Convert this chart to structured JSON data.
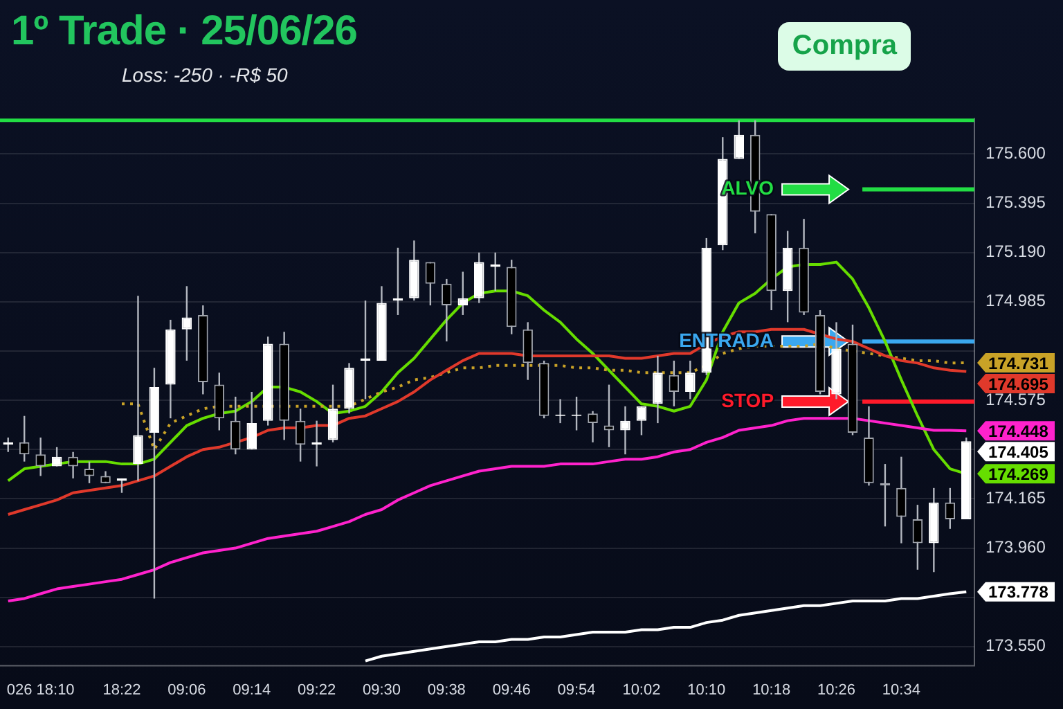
{
  "chart_data": {
    "type": "candlestick",
    "title": "1º Trade · 25/06/26",
    "subtitle": "Loss: -250 · -R$ 50",
    "annotations": [
      "Compra"
    ],
    "categories": [
      null,
      null,
      "026 18:10",
      null,
      null,
      null,
      null,
      "18:22",
      null,
      null,
      null,
      "09:06",
      null,
      null,
      null,
      "09:14",
      null,
      null,
      null,
      "09:22",
      null,
      null,
      null,
      "09:30",
      null,
      null,
      null,
      "09:38",
      null,
      null,
      null,
      "09:46",
      null,
      null,
      null,
      "09:54",
      null,
      null,
      null,
      "10:02",
      null,
      null,
      null,
      "10:10",
      null,
      null,
      null,
      "10:18",
      null,
      null,
      null,
      "10:26",
      null,
      null,
      null,
      "10:34",
      null,
      null,
      null,
      null
    ],
    "ohlc": [
      [
        174.39,
        174.42,
        174.36,
        174.4
      ],
      [
        174.4,
        174.51,
        174.32,
        174.35
      ],
      [
        174.35,
        174.42,
        174.26,
        174.3
      ],
      [
        174.3,
        174.38,
        174.3,
        174.34
      ],
      [
        174.34,
        174.36,
        174.25,
        174.3
      ],
      [
        174.29,
        174.32,
        174.23,
        174.26
      ],
      [
        174.26,
        174.28,
        174.23,
        174.23
      ],
      [
        174.24,
        174.25,
        174.19,
        174.25
      ],
      [
        174.31,
        175.01,
        174.24,
        174.43
      ],
      [
        174.44,
        174.71,
        173.75,
        174.63
      ],
      [
        174.64,
        174.91,
        174.5,
        174.87
      ],
      [
        174.87,
        175.05,
        174.74,
        174.92
      ],
      [
        174.93,
        174.97,
        174.6,
        174.65
      ],
      [
        174.64,
        174.69,
        174.45,
        174.5
      ],
      [
        174.49,
        174.59,
        174.35,
        174.37
      ],
      [
        174.37,
        174.61,
        174.37,
        174.48
      ],
      [
        174.49,
        174.84,
        174.47,
        174.81
      ],
      [
        174.81,
        174.86,
        174.41,
        174.49
      ],
      [
        174.49,
        174.54,
        174.32,
        174.39
      ],
      [
        174.39,
        174.49,
        174.3,
        174.4
      ],
      [
        174.41,
        174.64,
        174.4,
        174.54
      ],
      [
        174.54,
        174.73,
        174.52,
        174.71
      ],
      [
        174.74,
        174.99,
        174.58,
        174.75
      ],
      [
        174.74,
        175.05,
        174.74,
        174.98
      ],
      [
        174.99,
        175.21,
        174.93,
        175
      ],
      [
        175,
        175.24,
        174.99,
        175.16
      ],
      [
        175.15,
        175.15,
        174.97,
        175.06
      ],
      [
        175.06,
        175.08,
        174.82,
        174.97
      ],
      [
        174.97,
        175.11,
        174.93,
        175
      ],
      [
        175,
        175.19,
        174.98,
        175.15
      ],
      [
        175.13,
        175.19,
        175.03,
        175.14
      ],
      [
        175.13,
        175.16,
        174.85,
        174.88
      ],
      [
        174.87,
        174.9,
        174.66,
        174.73
      ],
      [
        174.73,
        174.74,
        174.5,
        174.51
      ],
      [
        174.51,
        174.58,
        174.48,
        174.51
      ],
      [
        174.51,
        174.59,
        174.45,
        174.51
      ],
      [
        174.52,
        174.53,
        174.4,
        174.48
      ],
      [
        174.47,
        174.64,
        174.38,
        174.45
      ],
      [
        174.45,
        174.55,
        174.35,
        174.49
      ],
      [
        174.49,
        174.55,
        174.43,
        174.55
      ],
      [
        174.56,
        174.76,
        174.48,
        174.69
      ],
      [
        174.68,
        174.74,
        174.55,
        174.61
      ],
      [
        174.61,
        174.74,
        174.58,
        174.69
      ],
      [
        174.69,
        175.25,
        174.68,
        175.21
      ],
      [
        175.22,
        175.67,
        175.2,
        175.58
      ],
      [
        175.58,
        175.74,
        175.58,
        175.68
      ],
      [
        175.68,
        175.74,
        175.27,
        175.36
      ],
      [
        175.35,
        175.35,
        174.95,
        175.03
      ],
      [
        175.03,
        175.28,
        174.9,
        175.21
      ],
      [
        175.21,
        175.33,
        174.93,
        174.94
      ],
      [
        174.93,
        174.95,
        174.6,
        174.61
      ],
      [
        174.6,
        174.9,
        174.58,
        174.79
      ],
      [
        174.81,
        174.89,
        174.43,
        174.44
      ],
      [
        174.42,
        174.55,
        174.22,
        174.23
      ],
      [
        174.23,
        174.31,
        174.05,
        174.22
      ],
      [
        174.21,
        174.34,
        173.98,
        174.09
      ],
      [
        174.08,
        174.14,
        173.87,
        173.98
      ],
      [
        173.98,
        174.21,
        173.86,
        174.15
      ],
      [
        174.15,
        174.21,
        174.04,
        174.08
      ],
      [
        174.08,
        174.42,
        174.08,
        174.405
      ]
    ],
    "series": [
      {
        "type": "line",
        "color": "#ffffff",
        "value_labels": [
          null,
          null,
          null,
          null,
          null,
          null,
          null,
          null,
          null,
          null,
          null,
          null,
          null,
          null,
          null,
          null,
          null,
          null,
          null,
          null,
          null,
          null,
          null,
          null,
          null,
          null,
          null,
          null,
          null,
          null,
          null,
          null,
          null,
          null,
          null,
          null,
          null,
          null,
          null,
          null,
          null,
          null,
          null,
          null,
          null,
          null,
          null,
          null,
          null,
          null,
          null,
          null,
          null,
          null,
          null,
          null,
          null,
          null,
          null,
          "173.778"
        ],
        "values": [
          null,
          null,
          null,
          null,
          null,
          null,
          null,
          null,
          null,
          null,
          null,
          null,
          null,
          null,
          null,
          null,
          null,
          null,
          null,
          null,
          null,
          null,
          173.49,
          173.51,
          173.52,
          173.53,
          173.54,
          173.55,
          173.56,
          173.57,
          173.57,
          173.58,
          173.58,
          173.59,
          173.59,
          173.6,
          173.61,
          173.61,
          173.61,
          173.62,
          173.62,
          173.63,
          173.63,
          173.65,
          173.66,
          173.68,
          173.69,
          173.7,
          173.71,
          173.72,
          173.72,
          173.73,
          173.74,
          173.74,
          173.74,
          173.75,
          173.75,
          173.76,
          173.77,
          173.778
        ]
      },
      {
        "type": "line",
        "color": "#ff22cc",
        "value_labels": [
          null,
          null,
          null,
          null,
          null,
          null,
          null,
          null,
          null,
          null,
          null,
          null,
          null,
          null,
          null,
          null,
          null,
          null,
          null,
          null,
          null,
          null,
          null,
          null,
          null,
          null,
          null,
          null,
          null,
          null,
          null,
          null,
          null,
          null,
          null,
          null,
          null,
          null,
          null,
          null,
          null,
          null,
          null,
          null,
          null,
          null,
          null,
          null,
          null,
          null,
          null,
          null,
          null,
          null,
          null,
          null,
          null,
          null,
          null,
          "174.448"
        ],
        "values": [
          173.74,
          173.75,
          173.77,
          173.79,
          173.8,
          173.81,
          173.82,
          173.83,
          173.85,
          173.87,
          173.9,
          173.92,
          173.94,
          173.95,
          173.96,
          173.98,
          174,
          174.01,
          174.02,
          174.03,
          174.05,
          174.07,
          174.1,
          174.12,
          174.16,
          174.19,
          174.22,
          174.24,
          174.26,
          174.28,
          174.29,
          174.3,
          174.3,
          174.3,
          174.31,
          174.31,
          174.31,
          174.32,
          174.33,
          174.33,
          174.34,
          174.36,
          174.37,
          174.4,
          174.42,
          174.45,
          174.46,
          174.47,
          174.49,
          174.5,
          174.5,
          174.5,
          174.5,
          174.49,
          174.48,
          174.47,
          174.46,
          174.45,
          174.45,
          174.448
        ]
      },
      {
        "type": "line",
        "color": "#e0392b",
        "value_labels": [
          null,
          null,
          null,
          null,
          null,
          null,
          null,
          null,
          null,
          null,
          null,
          null,
          null,
          null,
          null,
          null,
          null,
          null,
          null,
          null,
          null,
          null,
          null,
          null,
          null,
          null,
          null,
          null,
          null,
          null,
          null,
          null,
          null,
          null,
          null,
          null,
          null,
          null,
          null,
          null,
          null,
          null,
          null,
          null,
          null,
          null,
          null,
          null,
          null,
          null,
          null,
          null,
          null,
          null,
          null,
          null,
          null,
          null,
          null,
          "174.695"
        ],
        "values": [
          174.1,
          174.12,
          174.14,
          174.16,
          174.19,
          174.2,
          174.21,
          174.22,
          174.24,
          174.26,
          174.3,
          174.34,
          174.37,
          174.38,
          174.4,
          174.42,
          174.45,
          174.46,
          174.46,
          174.47,
          174.47,
          174.5,
          174.51,
          174.54,
          174.57,
          174.61,
          174.66,
          174.7,
          174.74,
          174.77,
          174.77,
          174.77,
          174.76,
          174.76,
          174.76,
          174.76,
          174.76,
          174.76,
          174.75,
          174.75,
          174.76,
          174.77,
          174.77,
          174.81,
          174.84,
          174.86,
          174.86,
          174.87,
          174.87,
          174.87,
          174.85,
          174.83,
          174.82,
          174.79,
          174.76,
          174.74,
          174.73,
          174.71,
          174.7,
          174.695
        ]
      },
      {
        "type": "line",
        "color": "#c9a227",
        "line_style": "dotted",
        "value_labels": [
          null,
          null,
          null,
          null,
          null,
          null,
          null,
          null,
          null,
          null,
          null,
          null,
          null,
          null,
          null,
          null,
          null,
          null,
          null,
          null,
          null,
          null,
          null,
          null,
          null,
          null,
          null,
          null,
          null,
          null,
          null,
          null,
          null,
          null,
          null,
          null,
          null,
          null,
          null,
          null,
          null,
          null,
          null,
          null,
          null,
          null,
          null,
          null,
          null,
          null,
          null,
          null,
          null,
          null,
          null,
          null,
          null,
          null,
          null,
          "174.731"
        ],
        "values": [
          null,
          null,
          null,
          null,
          null,
          null,
          null,
          174.56,
          174.56,
          174.37,
          174.48,
          174.51,
          174.54,
          174.55,
          174.55,
          174.55,
          174.55,
          174.55,
          174.55,
          174.55,
          174.55,
          174.55,
          174.58,
          174.61,
          174.63,
          174.66,
          174.67,
          174.69,
          174.71,
          174.71,
          174.72,
          174.72,
          174.72,
          174.72,
          174.72,
          174.71,
          174.71,
          174.7,
          174.7,
          174.69,
          174.69,
          174.69,
          174.69,
          174.72,
          174.77,
          174.79,
          174.8,
          174.8,
          174.8,
          174.8,
          174.81,
          174.79,
          174.78,
          174.77,
          174.76,
          174.75,
          174.74,
          174.74,
          174.73,
          174.731
        ]
      },
      {
        "type": "line",
        "color": "#66dd00",
        "value_labels": [
          null,
          null,
          null,
          null,
          null,
          null,
          null,
          null,
          null,
          null,
          null,
          null,
          null,
          null,
          null,
          null,
          null,
          null,
          null,
          null,
          null,
          null,
          null,
          null,
          null,
          null,
          null,
          null,
          null,
          null,
          null,
          null,
          null,
          null,
          null,
          null,
          null,
          null,
          null,
          null,
          null,
          null,
          null,
          null,
          null,
          null,
          null,
          null,
          null,
          null,
          null,
          null,
          null,
          null,
          null,
          null,
          null,
          null,
          null,
          "174.269"
        ],
        "values": [
          174.24,
          174.29,
          174.3,
          174.31,
          174.32,
          174.32,
          174.32,
          174.31,
          174.31,
          174.33,
          174.4,
          174.47,
          174.5,
          174.52,
          174.53,
          174.57,
          174.63,
          174.63,
          174.61,
          174.57,
          174.52,
          174.53,
          174.55,
          174.61,
          174.69,
          174.75,
          174.83,
          174.91,
          174.98,
          175.02,
          175.03,
          175.03,
          175.01,
          174.95,
          174.9,
          174.83,
          174.77,
          174.7,
          174.63,
          174.56,
          174.55,
          174.53,
          174.55,
          174.66,
          174.86,
          174.98,
          175.02,
          175.08,
          175.13,
          175.14,
          175.14,
          175.15,
          175.08,
          174.96,
          174.82,
          174.66,
          174.51,
          174.37,
          174.29,
          174.269
        ]
      }
    ],
    "ref_lines": [
      {
        "axis": "y",
        "value": 175.74,
        "color": "#22dd44"
      },
      {
        "axis": "y",
        "value": 175.453,
        "label": "ALVO",
        "color": "#22dd44"
      },
      {
        "axis": "y",
        "value": 174.82,
        "label": "ENTRADA",
        "color": "#3aa8f0"
      },
      {
        "axis": "y",
        "value": 174.57,
        "label": "STOP",
        "color": "#ff1a2a"
      }
    ],
    "value_labels": [
      null,
      null,
      null,
      null,
      null,
      null,
      null,
      null,
      null,
      null,
      null,
      null,
      null,
      null,
      null,
      null,
      null,
      null,
      null,
      null,
      null,
      null,
      null,
      null,
      null,
      null,
      null,
      null,
      null,
      null,
      null,
      null,
      null,
      null,
      null,
      null,
      null,
      null,
      null,
      null,
      null,
      null,
      null,
      null,
      null,
      null,
      null,
      null,
      null,
      null,
      null,
      null,
      null,
      null,
      null,
      null,
      null,
      null,
      null,
      "174.405"
    ],
    "ylim": [
      173.47,
      175.75
    ],
    "yticks": [
      {
        "value": 175.6,
        "label": "175.600"
      },
      {
        "value": 175.395,
        "label": "175.395"
      },
      {
        "value": 175.19,
        "label": "175.190"
      },
      {
        "value": 174.985,
        "label": "174.985"
      },
      {
        "value": 174.78,
        "label": null
      },
      {
        "value": 174.575,
        "label": "174.575"
      },
      {
        "value": 174.37,
        "label": null
      },
      {
        "value": 174.165,
        "label": "174.165"
      },
      {
        "value": 173.96,
        "label": "173.960"
      },
      {
        "value": 173.755,
        "label": null
      },
      {
        "value": 173.55,
        "label": "173.550"
      }
    ],
    "grid": "y",
    "legend": false,
    "marker": "none"
  }
}
